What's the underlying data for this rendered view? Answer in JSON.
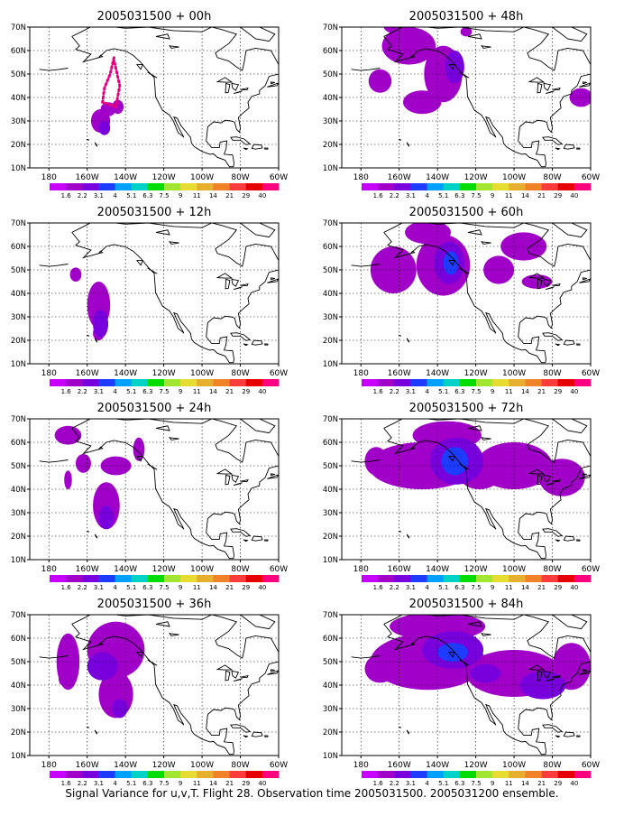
{
  "panels": [
    {
      "id": "p00h",
      "title": "2005031500 + 00h",
      "lead": "00h",
      "blobs": [
        {
          "lon": -153,
          "lat": 30,
          "rx": 5,
          "ry": 5,
          "level": 0
        },
        {
          "lon": -151,
          "lat": 27,
          "rx": 3,
          "ry": 3,
          "level": 1
        },
        {
          "lon": -149,
          "lat": 35,
          "rx": 4,
          "ry": 3,
          "level": 0
        },
        {
          "lon": -144,
          "lat": 36,
          "rx": 3,
          "ry": 3,
          "level": 0
        }
      ],
      "flight_track": [
        [
          -146,
          57
        ],
        [
          -148,
          50
        ],
        [
          -151,
          44
        ],
        [
          -152,
          38
        ],
        [
          -145,
          36
        ],
        [
          -143,
          45
        ],
        [
          -146,
          56
        ]
      ]
    },
    {
      "id": "p12h",
      "title": "2005031500 + 12h",
      "lead": "12h",
      "blobs": [
        {
          "lon": -166,
          "lat": 48,
          "rx": 3,
          "ry": 3,
          "level": 0
        },
        {
          "lon": -154,
          "lat": 35,
          "rx": 6,
          "ry": 10,
          "level": 0
        },
        {
          "lon": -153,
          "lat": 27,
          "rx": 4,
          "ry": 6,
          "level": 1
        },
        {
          "lon": -154,
          "lat": 23,
          "rx": 3,
          "ry": 3,
          "level": 0
        }
      ]
    },
    {
      "id": "p24h",
      "title": "2005031500 + 24h",
      "lead": "24h",
      "blobs": [
        {
          "lon": -170,
          "lat": 63,
          "rx": 7,
          "ry": 4,
          "level": 0
        },
        {
          "lon": -162,
          "lat": 51,
          "rx": 4,
          "ry": 4,
          "level": 0
        },
        {
          "lon": -150,
          "lat": 33,
          "rx": 7,
          "ry": 10,
          "level": 0
        },
        {
          "lon": -150,
          "lat": 28,
          "rx": 4,
          "ry": 5,
          "level": 1
        },
        {
          "lon": -145,
          "lat": 50,
          "rx": 8,
          "ry": 4,
          "level": 0
        },
        {
          "lon": -133,
          "lat": 57,
          "rx": 3,
          "ry": 5,
          "level": 0
        },
        {
          "lon": -170,
          "lat": 44,
          "rx": 2,
          "ry": 4,
          "level": 0
        }
      ]
    },
    {
      "id": "p36h",
      "title": "2005031500 + 36h",
      "lead": "36h",
      "blobs": [
        {
          "lon": -170,
          "lat": 50,
          "rx": 6,
          "ry": 12,
          "level": 0
        },
        {
          "lon": -145,
          "lat": 55,
          "rx": 15,
          "ry": 12,
          "level": 0
        },
        {
          "lon": -145,
          "lat": 36,
          "rx": 9,
          "ry": 10,
          "level": 0
        },
        {
          "lon": -143,
          "lat": 30,
          "rx": 4,
          "ry": 4,
          "level": 1
        },
        {
          "lon": -152,
          "lat": 48,
          "rx": 8,
          "ry": 6,
          "level": 1
        },
        {
          "lon": -173,
          "lat": 43,
          "rx": 2,
          "ry": 3,
          "level": 0
        }
      ]
    },
    {
      "id": "p48h",
      "title": "2005031500 + 48h",
      "lead": "48h",
      "blobs": [
        {
          "lon": -155,
          "lat": 62,
          "rx": 14,
          "ry": 8,
          "level": 0
        },
        {
          "lon": -170,
          "lat": 47,
          "rx": 6,
          "ry": 5,
          "level": 0
        },
        {
          "lon": -137,
          "lat": 50,
          "rx": 10,
          "ry": 12,
          "level": 0
        },
        {
          "lon": -131,
          "lat": 53,
          "rx": 5,
          "ry": 7,
          "level": 1
        },
        {
          "lon": -148,
          "lat": 38,
          "rx": 10,
          "ry": 5,
          "level": 0
        },
        {
          "lon": -125,
          "lat": 68,
          "rx": 3,
          "ry": 2,
          "level": 0
        },
        {
          "lon": -65,
          "lat": 40,
          "rx": 6,
          "ry": 4,
          "level": 0
        },
        {
          "lon": -160,
          "lat": 70,
          "rx": 8,
          "ry": 3,
          "level": 0
        }
      ]
    },
    {
      "id": "p60h",
      "title": "2005031500 + 60h",
      "lead": "60h",
      "blobs": [
        {
          "lon": -163,
          "lat": 50,
          "rx": 12,
          "ry": 10,
          "level": 0
        },
        {
          "lon": -137,
          "lat": 52,
          "rx": 14,
          "ry": 13,
          "level": 0
        },
        {
          "lon": -134,
          "lat": 53,
          "rx": 8,
          "ry": 9,
          "level": 1
        },
        {
          "lon": -133,
          "lat": 53,
          "rx": 4,
          "ry": 5,
          "level": 2
        },
        {
          "lon": -145,
          "lat": 66,
          "rx": 12,
          "ry": 5,
          "level": 0
        },
        {
          "lon": -95,
          "lat": 60,
          "rx": 12,
          "ry": 6,
          "level": 0
        },
        {
          "lon": -88,
          "lat": 45,
          "rx": 8,
          "ry": 3,
          "level": 0
        },
        {
          "lon": -108,
          "lat": 50,
          "rx": 8,
          "ry": 6,
          "level": 0
        }
      ]
    },
    {
      "id": "p72h",
      "title": "2005031500 + 72h",
      "lead": "72h",
      "blobs": [
        {
          "lon": -148,
          "lat": 50,
          "rx": 28,
          "ry": 10,
          "level": 0
        },
        {
          "lon": -130,
          "lat": 52,
          "rx": 14,
          "ry": 10,
          "level": 1
        },
        {
          "lon": -131,
          "lat": 52,
          "rx": 7,
          "ry": 6,
          "level": 2
        },
        {
          "lon": -135,
          "lat": 63,
          "rx": 18,
          "ry": 6,
          "level": 0
        },
        {
          "lon": -100,
          "lat": 50,
          "rx": 20,
          "ry": 10,
          "level": 0
        },
        {
          "lon": -75,
          "lat": 45,
          "rx": 12,
          "ry": 8,
          "level": 0
        },
        {
          "lon": -118,
          "lat": 45,
          "rx": 10,
          "ry": 5,
          "level": 0
        },
        {
          "lon": -172,
          "lat": 52,
          "rx": 6,
          "ry": 6,
          "level": 0
        }
      ]
    },
    {
      "id": "p84h",
      "title": "2005031500 + 84h",
      "lead": "84h",
      "blobs": [
        {
          "lon": -145,
          "lat": 50,
          "rx": 30,
          "ry": 12,
          "level": 0
        },
        {
          "lon": -132,
          "lat": 55,
          "rx": 16,
          "ry": 8,
          "level": 1
        },
        {
          "lon": -132,
          "lat": 54,
          "rx": 8,
          "ry": 4,
          "level": 2
        },
        {
          "lon": -140,
          "lat": 65,
          "rx": 25,
          "ry": 6,
          "level": 0
        },
        {
          "lon": -100,
          "lat": 45,
          "rx": 25,
          "ry": 10,
          "level": 0
        },
        {
          "lon": -85,
          "lat": 40,
          "rx": 12,
          "ry": 6,
          "level": 1
        },
        {
          "lon": -70,
          "lat": 48,
          "rx": 10,
          "ry": 10,
          "level": 0
        },
        {
          "lon": -170,
          "lat": 47,
          "rx": 8,
          "ry": 6,
          "level": 0
        },
        {
          "lon": -115,
          "lat": 45,
          "rx": 8,
          "ry": 4,
          "level": 1
        }
      ]
    }
  ],
  "map": {
    "lon_range": [
      -190,
      -60
    ],
    "lat_range": [
      10,
      70
    ],
    "lat_ticks": [
      "10N",
      "20N",
      "30N",
      "40N",
      "50N",
      "60N",
      "70N"
    ],
    "lat_tick_values": [
      10,
      20,
      30,
      40,
      50,
      60,
      70
    ],
    "lon_ticks": [
      "180",
      "160W",
      "140W",
      "120W",
      "100W",
      "80W",
      "60W"
    ],
    "lon_tick_values": [
      -180,
      -160,
      -140,
      -120,
      -100,
      -80,
      -60
    ],
    "grid": true
  },
  "colorbar": {
    "labels": [
      "1.6",
      "2.2",
      "3.1",
      "4",
      "5.1",
      "6.3",
      "7.5",
      "9",
      "11",
      "14",
      "21",
      "29",
      "40"
    ],
    "colors": [
      "#a000c8",
      "#7800dc",
      "#1e3cff",
      "#00a0ff",
      "#00d2c8",
      "#00dc00",
      "#a0e632",
      "#e6dc32",
      "#e6af2d",
      "#f08228",
      "#fa3c3c",
      "#e60000",
      "#ff007f"
    ]
  },
  "shading": {
    "level_colors": [
      "#a000c8",
      "#7800dc",
      "#1e3cff",
      "#00a0ff",
      "#00d2c8"
    ]
  },
  "caption": "Signal Variance for u,v,T. Flight 28. Observation time 2005031500. 2005031200 ensemble."
}
